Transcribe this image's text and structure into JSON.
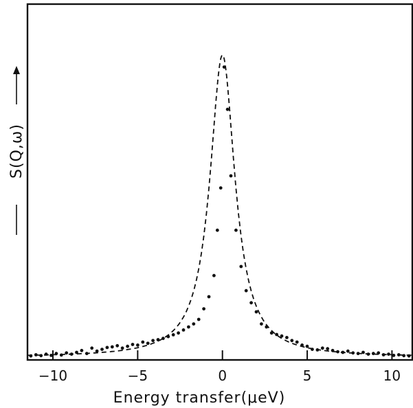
{
  "chart_data": {
    "type": "scatter",
    "title": "",
    "xlabel": "Energy transfer(μeV)",
    "ylabel": "S(Q,ω)",
    "xlim": [
      -11.5,
      11.2
    ],
    "ylim": [
      0,
      1.05
    ],
    "x_ticks": [
      -10,
      -5,
      0,
      5,
      10
    ],
    "x_tick_labels": [
      "−10",
      "−5",
      "0",
      "5",
      "10"
    ],
    "grid": false,
    "legend": "none",
    "series": [
      {
        "style": "dots",
        "x": [
          -11.3,
          -11.0,
          -10.7,
          -10.4,
          -10.1,
          -9.8,
          -9.5,
          -9.2,
          -8.9,
          -8.6,
          -8.3,
          -8.0,
          -7.7,
          -7.4,
          -7.1,
          -6.8,
          -6.5,
          -6.2,
          -5.9,
          -5.6,
          -5.3,
          -5.0,
          -4.7,
          -4.4,
          -4.1,
          -3.8,
          -3.5,
          -3.2,
          -2.9,
          -2.6,
          -2.3,
          -2.0,
          -1.7,
          -1.4,
          -1.1,
          -0.8,
          -0.5,
          -0.3,
          -0.1,
          0.1,
          0.3,
          0.5,
          0.8,
          1.1,
          1.4,
          1.7,
          2.0,
          2.3,
          2.6,
          2.9,
          3.2,
          3.5,
          3.8,
          4.1,
          4.4,
          4.7,
          5.0,
          5.3,
          5.6,
          5.9,
          6.2,
          6.5,
          6.8,
          7.1,
          7.4,
          7.7,
          8.0,
          8.3,
          8.6,
          8.9,
          9.2,
          9.5,
          9.8,
          10.1,
          10.4,
          10.7,
          11.0
        ],
        "y": [
          0.004,
          0.008,
          0.005,
          0.01,
          0.006,
          0.012,
          0.007,
          0.014,
          0.01,
          0.016,
          0.022,
          0.012,
          0.03,
          0.02,
          0.026,
          0.032,
          0.034,
          0.038,
          0.03,
          0.036,
          0.042,
          0.04,
          0.05,
          0.046,
          0.055,
          0.058,
          0.062,
          0.068,
          0.074,
          0.08,
          0.09,
          0.1,
          0.11,
          0.125,
          0.16,
          0.2,
          0.27,
          0.42,
          0.56,
          0.96,
          0.82,
          0.6,
          0.42,
          0.3,
          0.22,
          0.18,
          0.15,
          0.11,
          0.1,
          0.08,
          0.075,
          0.07,
          0.065,
          0.055,
          0.05,
          0.04,
          0.036,
          0.026,
          0.024,
          0.03,
          0.028,
          0.022,
          0.018,
          0.016,
          0.02,
          0.014,
          0.012,
          0.016,
          0.01,
          0.012,
          0.014,
          0.008,
          0.01,
          0.006,
          0.008,
          0.005,
          0.004
        ]
      },
      {
        "style": "dashed-line",
        "function": "lorentzian",
        "center": 0,
        "hwhm": 0.9,
        "peak": 1.0
      }
    ]
  }
}
